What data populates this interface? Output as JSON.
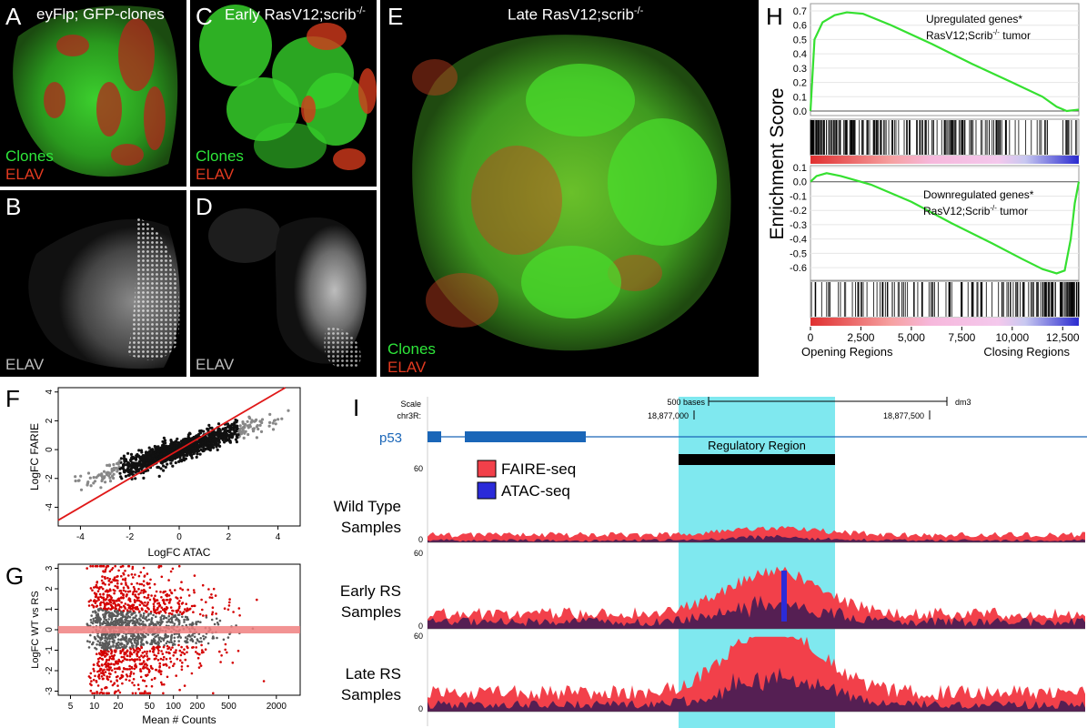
{
  "panel_letters": {
    "A": "A",
    "B": "B",
    "C": "C",
    "D": "D",
    "E": "E",
    "F": "F",
    "G": "G",
    "H": "H",
    "I": "I"
  },
  "micro": {
    "A": {
      "title": "eyFlp; GFP-clones",
      "l1": "Clones",
      "l2": "ELAV"
    },
    "B": {
      "l1": "ELAV"
    },
    "C": {
      "title_main": "Early RasV12;scrib",
      "title_sup": "-/-",
      "l1": "Clones",
      "l2": "ELAV"
    },
    "D": {
      "l1": "ELAV"
    },
    "E": {
      "title_main": "Late RasV12;scrib",
      "title_sup": "-/-",
      "l1": "Clones",
      "l2": "ELAV"
    }
  },
  "colors": {
    "clone_green": "#2ee63a",
    "elav_red": "#e23a20",
    "faire": "#f2404a",
    "atac": "#2b2bd9",
    "highlight": "#7fe8ef"
  },
  "chart_data": [
    {
      "id": "H",
      "type": "line",
      "ylabel": "Enrichment Score",
      "upper": {
        "annotation_1": "Upregulated genes*",
        "annotation_2_main": "RasV12;Scrib",
        "annotation_2_sup": "-/-",
        "annotation_2_tail": " tumor",
        "yticks": [
          "0.7",
          "0.6",
          "0.5",
          "0.4",
          "0.3",
          "0.2",
          "0.1",
          "0.0"
        ],
        "ylim": [
          0.0,
          0.7
        ],
        "x": [
          0,
          200,
          600,
          1200,
          1800,
          2600,
          4000,
          6000,
          8000,
          10000,
          11500,
          12200,
          12700,
          13300
        ],
        "y": [
          0.0,
          0.5,
          0.62,
          0.67,
          0.69,
          0.68,
          0.6,
          0.47,
          0.33,
          0.2,
          0.1,
          0.03,
          0.0,
          0.01
        ]
      },
      "lower": {
        "annotation_1": "Downregulated genes*",
        "annotation_2_main": "RasV12;Scrib",
        "annotation_2_sup": "-/-",
        "annotation_2_tail": " tumor",
        "yticks": [
          "0.1",
          "0.0",
          "-0.1",
          "-0.2",
          "-0.3",
          "-0.4",
          "-0.5",
          "-0.6"
        ],
        "ylim": [
          -0.65,
          0.1
        ],
        "x": [
          0,
          300,
          800,
          1500,
          3000,
          5000,
          7000,
          9000,
          10500,
          11500,
          12200,
          12600,
          12900,
          13100,
          13300
        ],
        "y": [
          0.0,
          0.04,
          0.06,
          0.04,
          -0.02,
          -0.14,
          -0.29,
          -0.43,
          -0.54,
          -0.61,
          -0.64,
          -0.62,
          -0.4,
          -0.15,
          0.0
        ]
      },
      "xticks": [
        "0",
        "2,500",
        "5,000",
        "7,500",
        "10,000",
        "12,500"
      ],
      "xtick_values": [
        0,
        2500,
        5000,
        7500,
        10000,
        12500
      ],
      "xlim": [
        0,
        13300
      ],
      "xlabel_left": "Opening Regions",
      "xlabel_right": "Closing Regions"
    },
    {
      "id": "F",
      "type": "scatter",
      "xlabel": "LogFC ATAC",
      "ylabel": "LogFC FARIE",
      "xticks": [
        "-4",
        "-2",
        "0",
        "2",
        "4"
      ],
      "xtick_values": [
        -4,
        -2,
        0,
        2,
        4
      ],
      "yticks": [
        "4",
        "2",
        "0",
        "-2",
        "-4"
      ],
      "ytick_values": [
        4,
        2,
        0,
        -2,
        -4
      ],
      "xlim": [
        -4.9,
        4.9
      ],
      "ylim": [
        -5.3,
        4.3
      ],
      "trend": "dense cloud along slope ~0.55 through origin",
      "diagonal": "y = x (red)"
    },
    {
      "id": "G",
      "type": "scatter",
      "xlabel": "Mean # Counts",
      "ylabel": "LogFC WT vs RS",
      "xticks": [
        "5",
        "10",
        "20",
        "50",
        "100",
        "200",
        "500",
        "2000"
      ],
      "xtick_values": [
        5,
        10,
        20,
        50,
        100,
        200,
        500,
        2000
      ],
      "yticks": [
        "3",
        "2",
        "1",
        "0",
        "-1",
        "-2",
        "-3"
      ],
      "ytick_values": [
        3,
        2,
        1,
        0,
        -1,
        -2,
        -3
      ],
      "xlim": [
        3.5,
        4000
      ],
      "ylim": [
        -3.2,
        3.2
      ],
      "x_scale": "log"
    },
    {
      "id": "I",
      "type": "area",
      "scale_label": "Scale",
      "chrom_label": "chr3R:",
      "scale_bar": "500 bases",
      "genome": "dm3",
      "coord_1": "18,877,000",
      "coord_2": "18,877,500",
      "gene": "p53",
      "region_label": "Regulatory Region",
      "ymax_label": "60",
      "ymin_label": "0",
      "legend": [
        {
          "name": "FAIRE-seq"
        },
        {
          "name": "ATAC-seq"
        }
      ],
      "tracks": [
        {
          "label_1": "Wild Type",
          "label_2": "Samples",
          "faire_level": 0.1,
          "atac_level": 0.03,
          "peak": 0.1
        },
        {
          "label_1": "Early RS",
          "label_2": "Samples",
          "faire_level": 0.2,
          "atac_level": 0.1,
          "peak": 0.55
        },
        {
          "label_1": "Late RS",
          "label_2": "Samples",
          "faire_level": 0.25,
          "atac_level": 0.1,
          "peak": 0.85
        }
      ]
    }
  ]
}
